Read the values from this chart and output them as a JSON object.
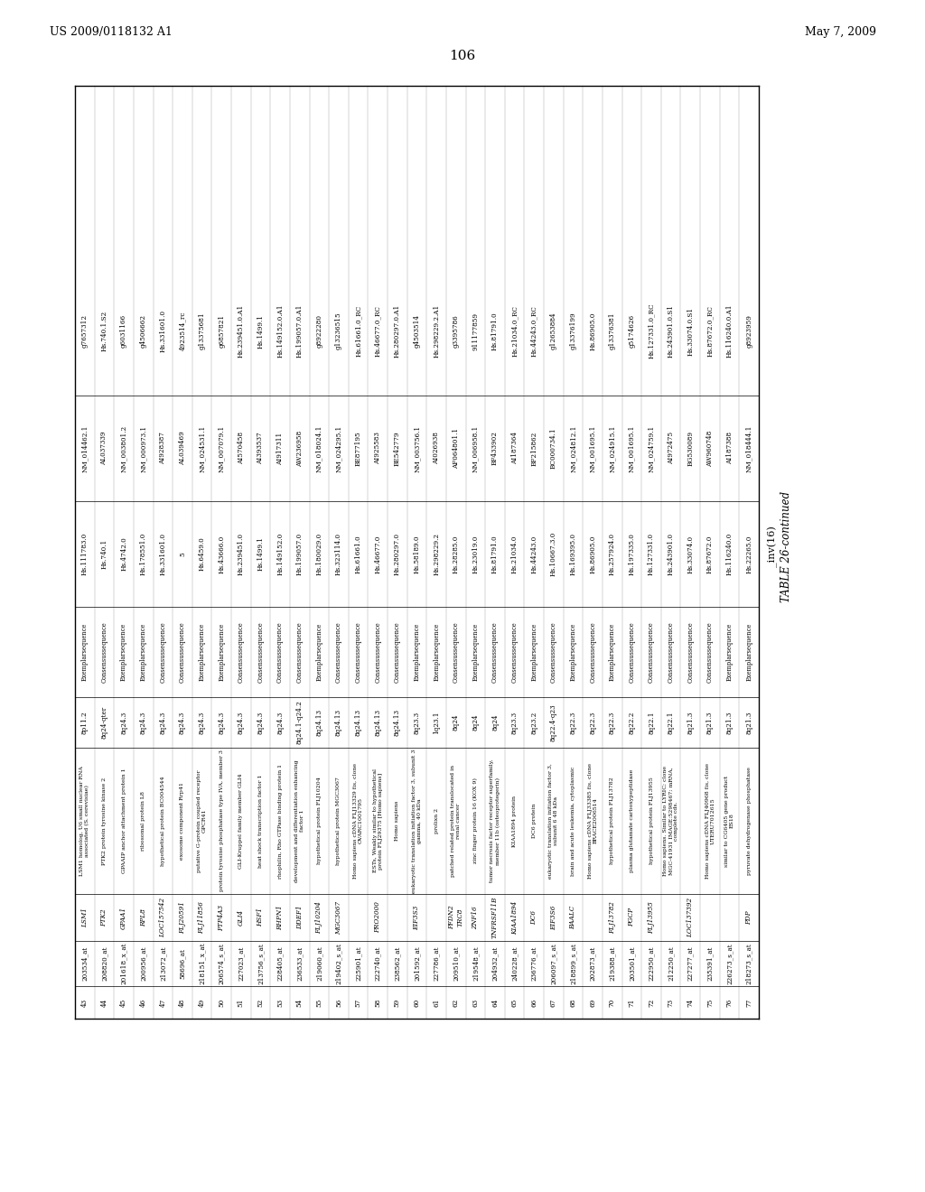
{
  "header_left": "US 2009/0118132 A1",
  "header_right": "May 7, 2009",
  "page_number": "106",
  "table_title": "TABLE 26-continued",
  "table_subtitle": "_inv(16)",
  "rows": [
    [
      "43",
      "203534_at",
      "LSM1",
      "LSM1 homolog, U6 small nuclear RNA\nassociated (S. cerevisiae)",
      "8p11.2",
      "Exemplarsequence",
      "Hs.111783.0",
      "NM_014462.1",
      "g7657312"
    ],
    [
      "44",
      "208820_at",
      "PTK2",
      "PTK2 protein tyrosine kinase 2",
      "8q24-qter",
      "Consensussequence",
      "Hs.740.1",
      "AL037339",
      "Hs.740.1.S2"
    ],
    [
      "45",
      "201618_x_at",
      "GPAA1",
      "GPAAIP anchor attachment protein 1",
      "8q24.3",
      "Exemplarsequence",
      "Hs.4742.0",
      "NM_003801.2",
      "g6031166"
    ],
    [
      "46",
      "200956_at",
      "RPL8",
      "ribosomal protein L8",
      "8q24.3",
      "Exemplarsequence",
      "Hs.178551.0",
      "NM_000973.1",
      "g4506662"
    ],
    [
      "47",
      "213072_at",
      "LOC157542",
      "hypothetical protein BC004544",
      "8q24.3",
      "Consensussequence",
      "Hs.331601.0",
      "AI928387",
      "Hs.331601.0"
    ],
    [
      "48",
      "58696_at",
      "FLJ20591",
      "exosome component Rrp41",
      "8q24.3",
      "Consensussequence",
      "5",
      "AL039469",
      "4923514_rc"
    ],
    [
      "49",
      "218151_x_at",
      "FLJ11856",
      "putative G-protein coupled receptor\nGPCR41",
      "8q24.3",
      "Exemplarsequence",
      "Hs.6459.0",
      "NM_024531.1",
      "g13375681"
    ],
    [
      "50",
      "206574_s_at",
      "PTP4A3",
      "protein tyrosine phosphatase type IVA, member 3",
      "8q24.3",
      "Exemplarsequence",
      "Hs.43666.0",
      "NM_007079.1",
      "g6857821"
    ],
    [
      "51",
      "227023_at",
      "GLI4",
      "GLI-Kruppel family member GLI4",
      "8q24.3",
      "Consensussequence",
      "Hs.239451.0",
      "AI570458",
      "Hs.239451.0.A1"
    ],
    [
      "52",
      "213756_s_at",
      "HSF1",
      "heat shock transcription factor 1",
      "8q24.3",
      "Consensussequence",
      "Hs.1499.1",
      "AI393537",
      "Hs.1499.1"
    ],
    [
      "53",
      "228405_at",
      "RHPN1",
      "rhophilin, Rho GTPase binding protein 1",
      "8q24.3",
      "Consensussequence",
      "Hs.149152.0",
      "AI917311",
      "Hs.149152.0.A1"
    ],
    [
      "54",
      "236533_at",
      "DDEF1",
      "development and differentiation enhancing\nfactor 1",
      "8q24.1-q24.2",
      "Consensussequence",
      "Hs.199057.0",
      "AW236958",
      "Hs.199057.0.A1"
    ],
    [
      "55",
      "219060_at",
      "FLJ10204",
      "hypothetical protein FLJ10204",
      "8q24.13",
      "Exemplarsequence",
      "Hs.180029.0",
      "NM_018024.1",
      "g8922280"
    ],
    [
      "56",
      "219402_s_at",
      "MGC3067",
      "hypothetical protein MGC3067",
      "8q24.13",
      "Consensussequence",
      "Hs.323114.0",
      "NM_024295.1",
      "g13236515"
    ],
    [
      "57",
      "225901_at",
      "",
      "Homo sapiens cDNA FLJ13329 fis, clone\nOVARC1001795",
      "8q24.13",
      "Consensussequence",
      "Hs.61661.0",
      "BE877195",
      "Hs.61661.0_RC"
    ],
    [
      "58",
      "222740_at",
      "PRO2000",
      "ESTs, Weakly similar to hypothetical\nprotein FLJ29375 [Homo sapiens]",
      "8q24.13",
      "Consensussequence",
      "Hs.46677.0",
      "AI925583",
      "Hs.46677.0_RC"
    ],
    [
      "59",
      "238562_at",
      "",
      "Homo sapiens",
      "8q24.13",
      "Consensussequence",
      "Hs.280297.0",
      "BE542779",
      "Hs.280297.0.A1"
    ],
    [
      "60",
      "201592_at",
      "EIF3S3",
      "eukaryotic translation initiation factor 3, subunit 3\ngamma, 40 kDa",
      "8q23.3",
      "Exemplarsequence",
      "Hs.58189.0",
      "NM_003756.1",
      "g4503514"
    ],
    [
      "61",
      "227786_at",
      "",
      "prolixn 2",
      "1q23.1",
      "Exemplarsequence",
      "Hs.298229.2",
      "AI026938",
      "Hs.298229.2.A1"
    ],
    [
      "62",
      "209510_at",
      "PFDN2\nTRC8",
      "patched related protein translocated in\nrenal cancer",
      "8q24",
      "Consensussequence",
      "Hs.28285.0",
      "AF064801.1",
      "g3395786"
    ],
    [
      "63",
      "219548_at",
      "ZNF16",
      "zinc finger protein 16 (KOX 9)",
      "8q24",
      "Exemplarsequence",
      "Hs.23019.0",
      "NM_006958.1",
      "911177859"
    ],
    [
      "64",
      "204932_at",
      "TNFRSF11B",
      "tumor necrosis factor receptor superfamily,\nmember 11b (osteoprotegerin)",
      "8q24",
      "Consensussequence",
      "Hs.81791.0",
      "BF433902",
      "Hs.81791.0"
    ],
    [
      "65",
      "240228_at",
      "KIAA1894",
      "KIAA1894 protein",
      "8q23.3",
      "Consensussequence",
      "Hs.21034.0",
      "AI187364",
      "Hs.21034.0_RC"
    ],
    [
      "66",
      "236776_at",
      "DC6",
      "DC6 protein",
      "8q23.2",
      "Exemplarsequence",
      "Hs.44243.0",
      "BF215862",
      "Hs.44243.0_RC"
    ],
    [
      "67",
      "206097_s_at",
      "EIF3S6",
      "eukaryotic translation initiation factor 3,\nsubunit 6 48 kDa",
      "8q22.4-q23",
      "Consensussequence",
      "Hs.10667.3.0",
      "BC000734.1",
      "g12653884"
    ],
    [
      "68",
      "218899_s_at",
      "BAALC",
      "brain and acute leukemia, cytoplasmic",
      "8q22.3",
      "Exemplarsequence",
      "Hs.169395.0",
      "NM_024812.1",
      "g13376199"
    ],
    [
      "69",
      "202873_at",
      "",
      "Homo sapiens cDNA FLJ33385 fis, clone\nBRACE2006514",
      "8q22.3",
      "Consensussequence",
      "Hs.86905.0",
      "NM_001695.1",
      "Hs.86905.0"
    ],
    [
      "70",
      "219388_at",
      "FLJ13782",
      "hypothetical protein FLJ13782",
      "8q22.3",
      "Exemplarsequence",
      "Hs.257924.0",
      "NM_024915.1",
      "g13376381"
    ],
    [
      "71",
      "203501_at",
      "PGCP",
      "plasma glutamate carboxypeptidase",
      "8q22.2",
      "Consensussequence",
      "Hs.197335.0",
      "NM_001695.1",
      "g5174626"
    ],
    [
      "72",
      "222950_at",
      "FLJ13955",
      "hypothetical protein FLJ13955",
      "8q22.1",
      "Consensussequence",
      "Hs.127331.0",
      "NM_024759.1",
      "Hs.127331.0_RC"
    ],
    [
      "73",
      "212250_at",
      "",
      "Homo sapiens. Similar to LYRIC; clone\nMGC-41931 IMAGE:5298467; mRNA,\ncomplete cds.",
      "8q22.1",
      "Consensussequence",
      "Hs.243901.0",
      "AI972475",
      "Hs.243901.0.S1"
    ],
    [
      "74",
      "227277_at",
      "LOC137392",
      "",
      "8q21.3",
      "Consensussequence",
      "Hs.33074.0",
      "BG530089",
      "Hs.33074.0.S1"
    ],
    [
      "75",
      "235391_at",
      "",
      "Homo sapiens cDNA FLJ40968 fis, clone\nUTERU7012615",
      "8q21.3",
      "Consensussequence",
      "Hs.87672.0",
      "AW960748",
      "Hs.87672.0_RC"
    ],
    [
      "76",
      "226273_s_at",
      "",
      "similar to CG6405 gene product\nES18",
      "8q21.3",
      "Exemplarsequence",
      "Hs.116240.0",
      "AI187388",
      "Hs.116240.0.A1"
    ],
    [
      "77",
      "218273_s_at",
      "PDP",
      "pyruvate dehydrogenase phosphatase",
      "8q21.3",
      "Exemplarsequence",
      "Hs.22265.0",
      "NM_018444.1",
      "g8923959"
    ]
  ]
}
